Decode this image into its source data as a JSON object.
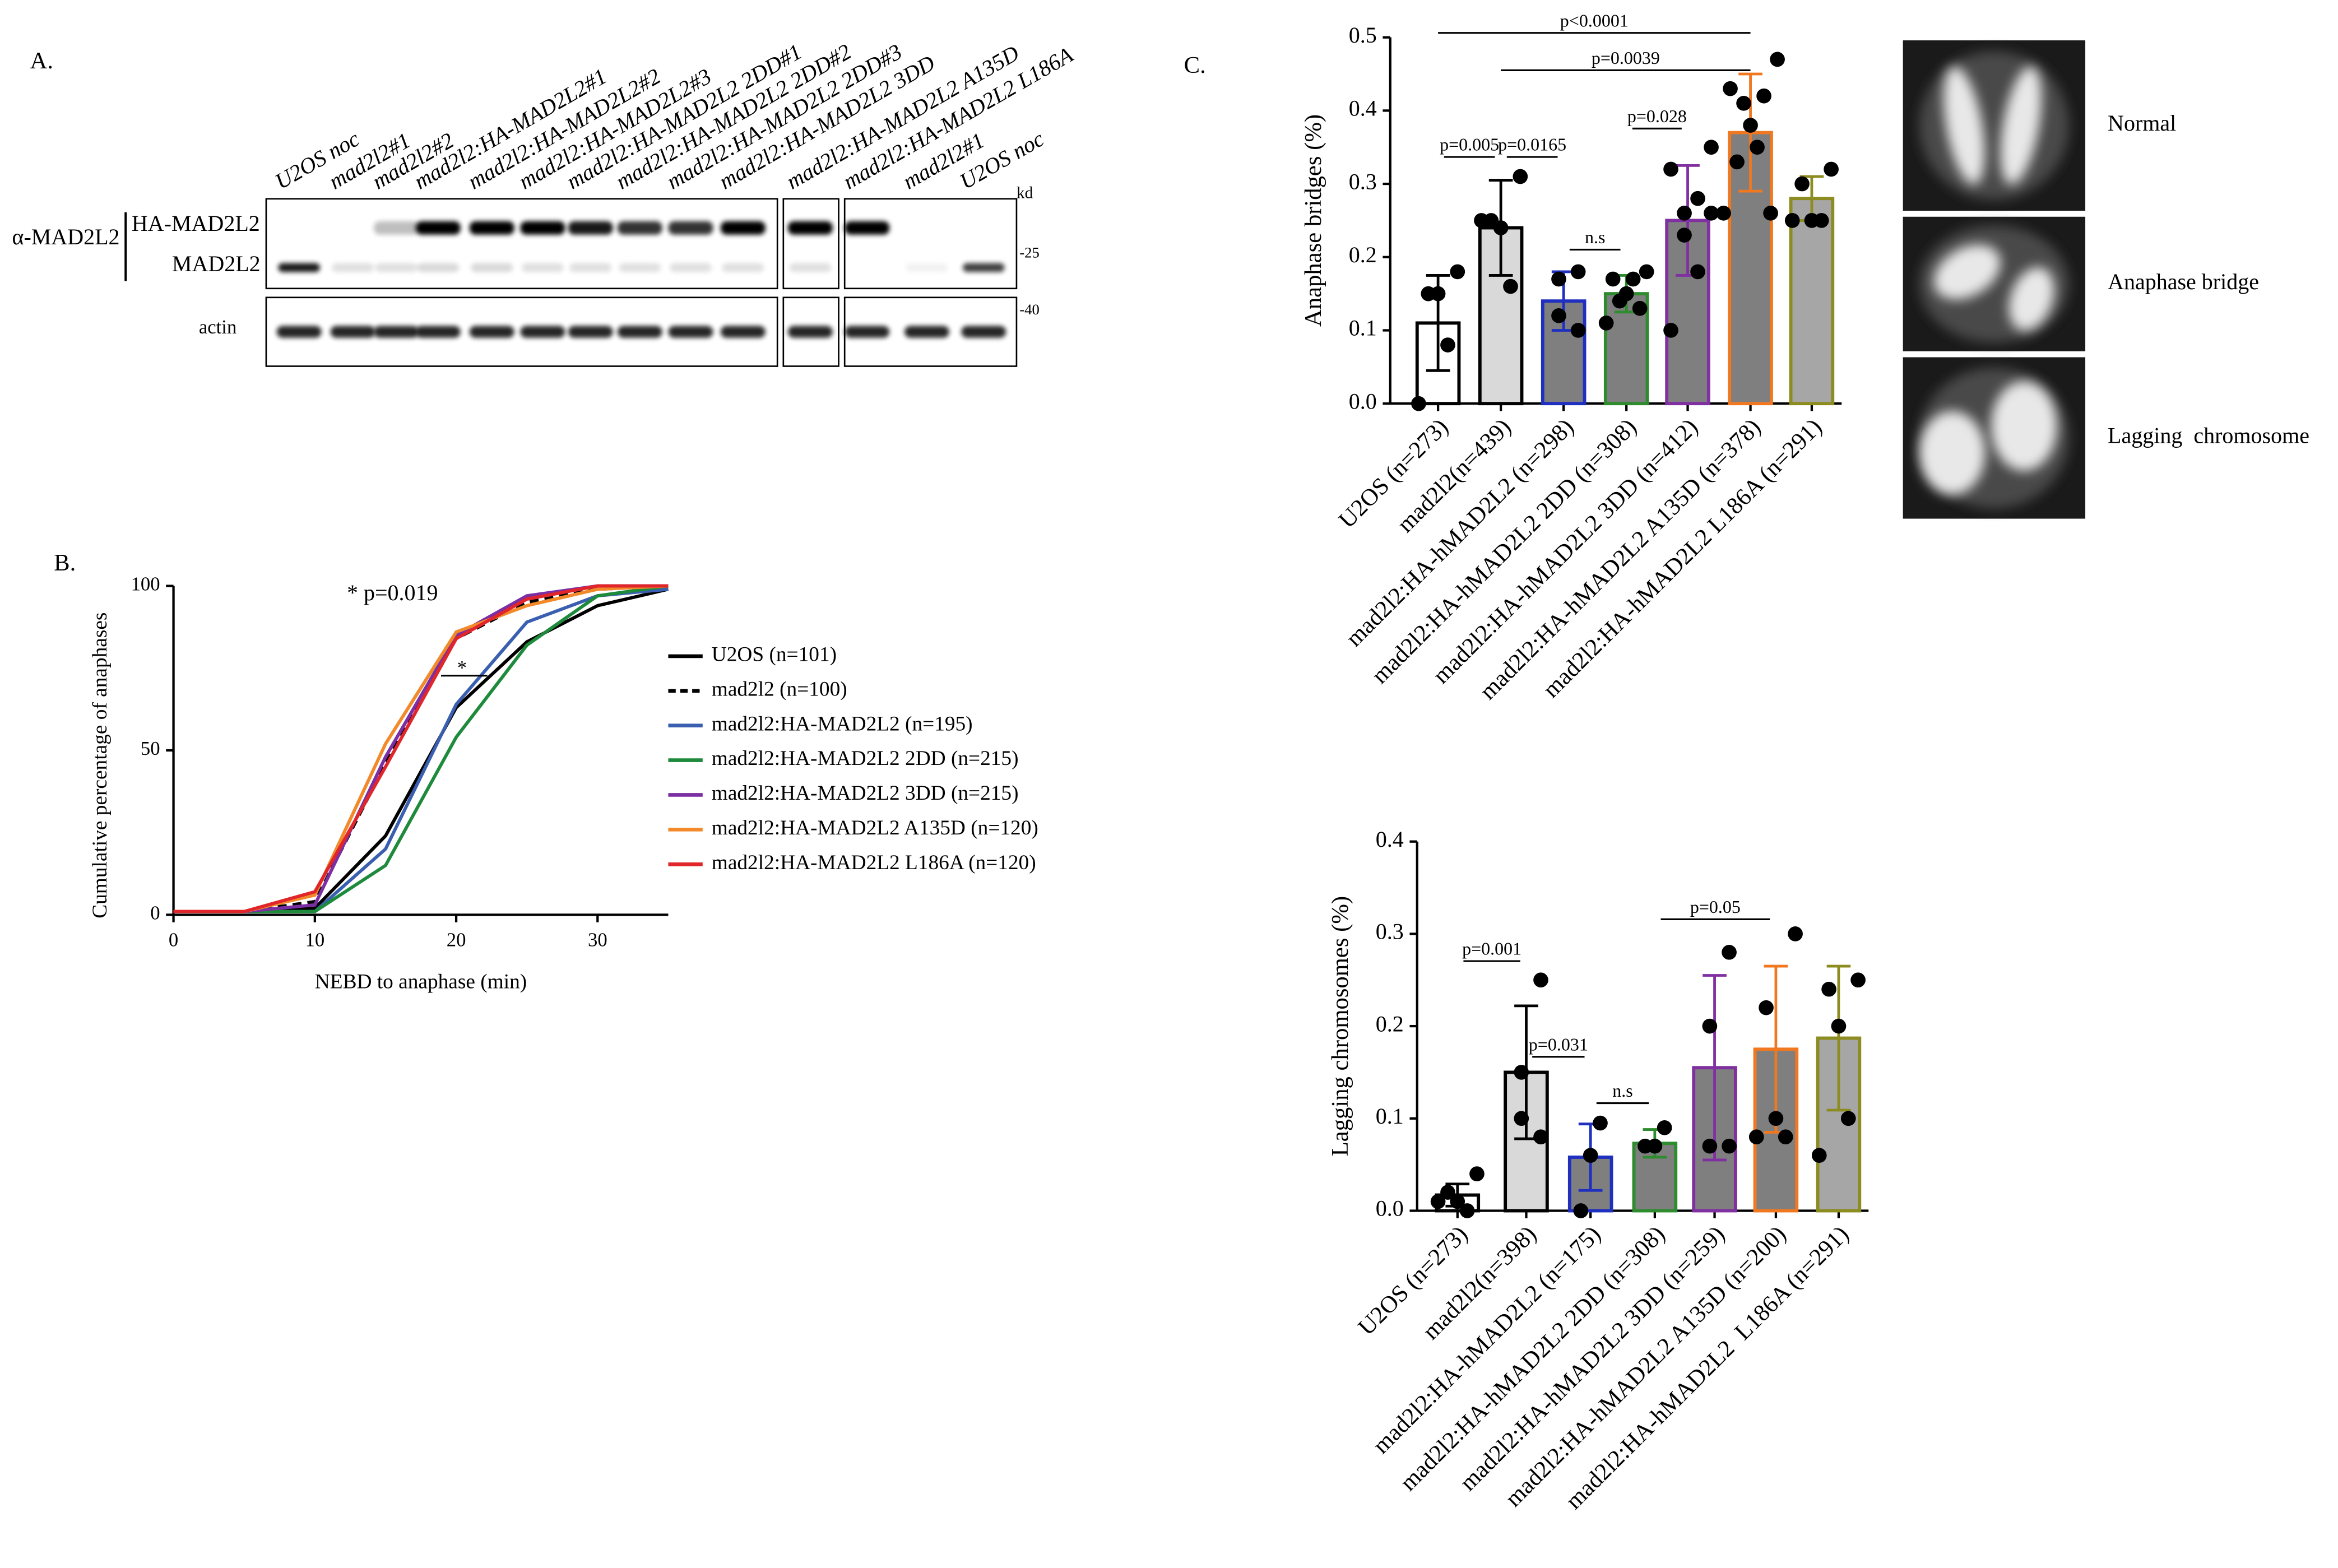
{
  "panel_labels": [
    "A.",
    "B.",
    "C."
  ],
  "blot": {
    "lanes": [
      {
        "label": "U2OS noc",
        "color": "#000000"
      },
      {
        "label": "mad2l2#1",
        "color": "#000000"
      },
      {
        "label": "mad2l2#2",
        "color": "#000000"
      },
      {
        "label": "mad2l2:HA-MAD2L2#1",
        "color": "#2e2e9a"
      },
      {
        "label": "mad2l2:HA-MAD2L2#2",
        "color": "#2e2e9a"
      },
      {
        "label": "mad2l2:HA-MAD2L2#3",
        "color": "#2e2e9a"
      },
      {
        "label": "mad2l2:HA-MAD2L2 2DD#1",
        "color": "#1b7a3e"
      },
      {
        "label": "mad2l2:HA-MAD2L2 2DD#2",
        "color": "#1b7a3e"
      },
      {
        "label": "mad2l2:HA-MAD2L2 2DD#3",
        "color": "#1b7a3e"
      },
      {
        "label": "mad2l2:HA-MAD2L2 3DD",
        "color": "#7b2fa3"
      },
      {
        "label": "mad2l2:HA-MAD2L2 A135D",
        "color": "#f07a20"
      },
      {
        "label": "mad2l2:HA-MAD2L2 L186A",
        "color": "#e0262a"
      },
      {
        "label": "mad2l2#1",
        "color": "#000000"
      },
      {
        "label": "U2OS noc",
        "color": "#000000"
      }
    ],
    "antibody": "α-MAD2L2",
    "bands": [
      "HA-MAD2L2",
      "MAD2L2"
    ],
    "loading": "actin",
    "unit": "kd",
    "markers": [
      "-25",
      "-40"
    ]
  },
  "micrographs": [
    "Normal",
    "Anaphase bridge",
    "Lagging  chromosome"
  ],
  "chart_data": [
    {
      "type": "line",
      "xlabel": "NEBD to anaphase (min)",
      "ylabel": "Cumulative percentage of anaphases",
      "annotations": [
        "* p=0.019",
        "*"
      ],
      "x": [
        0,
        5,
        10,
        15,
        20,
        25,
        30,
        35
      ],
      "xlim": [
        0,
        35
      ],
      "xticks": [
        0,
        10,
        20,
        30
      ],
      "ylim": [
        0,
        100
      ],
      "yticks": [
        0,
        50,
        100
      ],
      "series": [
        {
          "name": "U2OS (n=101)",
          "color": "#000000",
          "style": "solid",
          "values": [
            1,
            1,
            2,
            24,
            63,
            83,
            94,
            99
          ]
        },
        {
          "name": "mad2l2 (n=100)",
          "color": "#000000",
          "style": "dashed",
          "values": [
            1,
            1,
            4,
            46,
            84,
            95,
            99,
            100
          ]
        },
        {
          "name": "mad2l2:HA-MAD2L2 (n=195)",
          "color": "#3a5fb0",
          "style": "solid",
          "values": [
            1,
            1,
            1,
            20,
            64,
            89,
            97,
            99
          ]
        },
        {
          "name": "mad2l2:HA-MAD2L2 2DD (n=215)",
          "color": "#1e8a3c",
          "style": "solid",
          "values": [
            1,
            1,
            1,
            15,
            54,
            82,
            97,
            100
          ]
        },
        {
          "name": "mad2l2:HA-MAD2L2 3DD (n=215)",
          "color": "#7b2fa3",
          "style": "solid",
          "values": [
            1,
            1,
            3,
            48,
            85,
            97,
            100,
            100
          ]
        },
        {
          "name": "mad2l2:HA-MAD2L2 A135D (n=120)",
          "color": "#f28a2a",
          "style": "solid",
          "values": [
            1,
            1,
            6,
            52,
            86,
            94,
            99,
            100
          ]
        },
        {
          "name": "mad2l2:HA-MAD2L2 L186A (n=120)",
          "color": "#e0262a",
          "style": "solid",
          "values": [
            1,
            1,
            7,
            45,
            84,
            96,
            100,
            100
          ]
        }
      ]
    },
    {
      "type": "bar",
      "ylabel": "Anaphase bridges (%)",
      "categories": [
        "U2OS (n=273)",
        "mad2l2(n=439)",
        "mad2l2:HA-hMAD2L2 (n=298)",
        "mad2l2:HA-hMAD2L2 2DD (n=308)",
        "mad2l2:HA-hMAD2L2 3DD (n=412)",
        "mad2l2:HA-hMAD2L2 A135D (n=378)",
        "mad2l2:HA-hMAD2L2 L186A (n=291)"
      ],
      "values": [
        0.11,
        0.24,
        0.14,
        0.15,
        0.25,
        0.37,
        0.28
      ],
      "error": [
        0.065,
        0.065,
        0.04,
        0.025,
        0.075,
        0.08,
        0.03
      ],
      "points": [
        [
          0.18,
          0.15,
          0.15,
          0.08,
          0.0
        ],
        [
          0.31,
          0.25,
          0.24,
          0.16,
          0.25
        ],
        [
          0.18,
          0.17,
          0.12,
          0.1
        ],
        [
          0.18,
          0.17,
          0.17,
          0.15,
          0.14,
          0.13,
          0.11
        ],
        [
          0.35,
          0.32,
          0.28,
          0.26,
          0.23,
          0.18,
          0.1,
          0.26
        ],
        [
          0.47,
          0.43,
          0.42,
          0.41,
          0.38,
          0.35,
          0.33,
          0.26,
          0.26
        ],
        [
          0.32,
          0.3,
          0.25,
          0.25,
          0.25
        ]
      ],
      "colors": [
        "#ffffff",
        "#d9d9d9",
        "#7f7f7f",
        "#7f7f7f",
        "#7f7f7f",
        "#7f7f7f",
        "#a6a6a6"
      ],
      "edge_colors": [
        "#000000",
        "#000000",
        "#1f2fbf",
        "#2e8b2e",
        "#8030a0",
        "#f07820",
        "#8c8c20"
      ],
      "annotations": [
        "p<0.0001",
        "p=0.0039",
        "p=0.005",
        "p=0.0165",
        "n.s",
        "p=0.028"
      ],
      "ylim": [
        0,
        0.5
      ],
      "yticks": [
        {
          "value": 0,
          "label": "0.0"
        },
        0.1,
        0.2,
        0.3,
        0.4,
        0.5
      ]
    },
    {
      "type": "bar",
      "ylabel": "Lagging chromosomes (%)",
      "categories": [
        "U2OS (n=273)",
        "mad2l2(n=398)",
        "mad2l2:HA-hMAD2L2 (n=175)",
        "mad2l2:HA-hMAD2L2 2DD (n=308)",
        "mad2l2:HA-hMAD2L2 3DD (n=259)",
        "mad2l2:HA-hMAD2L2 A135D (n=200)",
        "mad2l2:HA-hMAD2L2  L186A (n=291)"
      ],
      "values": [
        0.017,
        0.15,
        0.058,
        0.073,
        0.155,
        0.175,
        0.187
      ],
      "error": [
        0.012,
        0.072,
        0.036,
        0.015,
        0.1,
        0.09,
        0.078
      ],
      "points": [
        [
          0.04,
          0.02,
          0.01,
          0.0,
          0.01
        ],
        [
          0.25,
          0.15,
          0.1,
          0.08
        ],
        [
          0.095,
          0.06,
          0.0
        ],
        [
          0.09,
          0.07,
          0.07
        ],
        [
          0.28,
          0.2,
          0.07,
          0.07
        ],
        [
          0.3,
          0.22,
          0.1,
          0.08,
          0.08
        ],
        [
          0.25,
          0.24,
          0.2,
          0.1,
          0.06
        ]
      ],
      "colors": [
        "#ffffff",
        "#d9d9d9",
        "#7f7f7f",
        "#7f7f7f",
        "#7f7f7f",
        "#7f7f7f",
        "#a6a6a6"
      ],
      "edge_colors": [
        "#000000",
        "#000000",
        "#1f2fbf",
        "#2e8b2e",
        "#8030a0",
        "#f07820",
        "#8c8c20"
      ],
      "annotations": [
        "p=0.001",
        "p=0.031",
        "n.s",
        "p=0.05"
      ],
      "ylim": [
        0,
        0.4
      ],
      "yticks": [
        {
          "value": 0,
          "label": "0.0"
        },
        0.1,
        0.2,
        0.3,
        0.4
      ]
    }
  ]
}
